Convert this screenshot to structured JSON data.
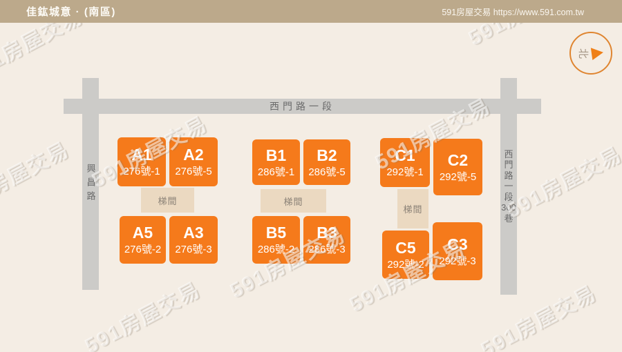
{
  "header": {
    "title": "佳鈜城意 · (南區)",
    "site_label": "591房屋交易 https://www.591.com.tw"
  },
  "compass": {
    "north": "北"
  },
  "roads": {
    "top": "西門路一段",
    "left": "興昌路",
    "right": [
      "西",
      "門",
      "路",
      "一",
      "段",
      "300",
      "巷"
    ]
  },
  "labels": {
    "stair": "梯間"
  },
  "watermark": {
    "text": "591房屋交易"
  },
  "colors": {
    "block_orange": "#f57a1b",
    "stair_tan": "#ebd9c1",
    "road_gray": "#cccbc8",
    "header_tan": "#bca98b",
    "background": "#f4ede4",
    "compass_ring": "#df8530"
  },
  "buildings": [
    {
      "id": "A1",
      "addr": "276號-1"
    },
    {
      "id": "A2",
      "addr": "276號-5"
    },
    {
      "id": "A5",
      "addr": "276號-2"
    },
    {
      "id": "A3",
      "addr": "276號-3"
    },
    {
      "id": "B1",
      "addr": "286號-1"
    },
    {
      "id": "B2",
      "addr": "286號-5"
    },
    {
      "id": "B5",
      "addr": "286號-2"
    },
    {
      "id": "B3",
      "addr": "286號-3"
    },
    {
      "id": "C1",
      "addr": "292號-1"
    },
    {
      "id": "C2",
      "addr": "292號-5"
    },
    {
      "id": "C5",
      "addr": "292號-2"
    },
    {
      "id": "C3",
      "addr": "292號-3"
    }
  ]
}
